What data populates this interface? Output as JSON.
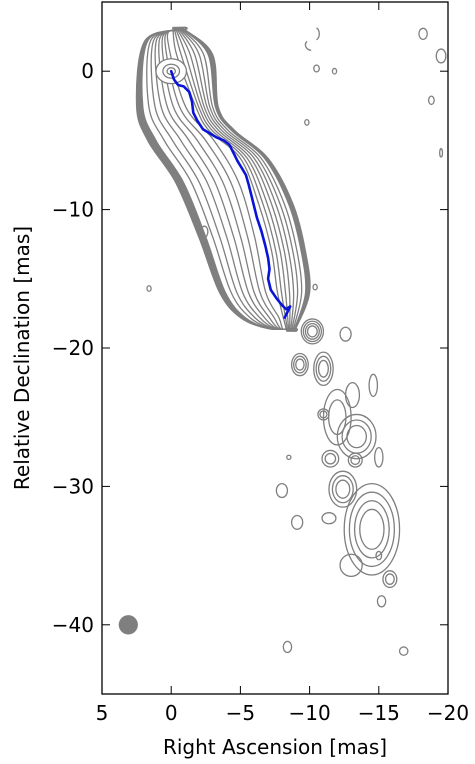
{
  "chart_data": {
    "type": "contour",
    "title": "",
    "xlabel": "Right Ascension [mas]",
    "ylabel": "Relative Declination [mas]",
    "xlim": [
      5,
      -20
    ],
    "ylim": [
      -45,
      5
    ],
    "x_ticks": [
      5,
      0,
      -5,
      -10,
      -15,
      -20
    ],
    "x_tick_labels": [
      "5",
      "0",
      "−5",
      "−10",
      "−15",
      "−20"
    ],
    "y_ticks": [
      0,
      -10,
      -20,
      -30,
      -40
    ],
    "y_tick_labels": [
      "0",
      "−10",
      "−20",
      "−30",
      "−40"
    ],
    "grid": false,
    "colors": {
      "contour": "#7f7f7f",
      "ridge": "#0a14d8",
      "beam": "#7f7f7f"
    },
    "ridge_line": {
      "x": [
        0.0,
        -0.2,
        -0.5,
        -0.9,
        -1.3,
        -1.5,
        -1.6,
        -1.9,
        -2.3,
        -2.8,
        -3.3,
        -3.8,
        -4.2,
        -4.5,
        -4.8,
        -5.1,
        -5.4,
        -5.6,
        -5.8,
        -6.0,
        -6.2,
        -6.5,
        -6.8,
        -7.0,
        -7.1,
        -7.0,
        -7.2,
        -7.6,
        -8.0,
        -8.3,
        -8.6,
        -8.2
      ],
      "y": [
        0.0,
        -0.6,
        -1.0,
        -1.1,
        -1.5,
        -2.2,
        -3.0,
        -3.6,
        -4.2,
        -4.5,
        -4.8,
        -5.0,
        -5.3,
        -5.9,
        -6.5,
        -7.0,
        -7.5,
        -8.2,
        -9.0,
        -9.8,
        -10.6,
        -11.5,
        -12.6,
        -13.5,
        -14.3,
        -15.0,
        -15.8,
        -16.4,
        -16.9,
        -17.2,
        -17.0,
        -17.8
      ]
    },
    "beam": {
      "x": 3.1,
      "y": -40.0,
      "major_mas": 1.4,
      "minor_mas": 1.1
    },
    "main_jet": {
      "levels": 8,
      "outer_left": [
        [
          -1.0,
          3.0
        ],
        [
          1.9,
          2.2
        ],
        [
          2.5,
          -2.5
        ],
        [
          1.7,
          -5.0
        ],
        [
          -0.3,
          -8.0
        ],
        [
          -2.0,
          -12.0
        ],
        [
          -3.5,
          -16.0
        ],
        [
          -5.0,
          -17.8
        ],
        [
          -7.0,
          -18.6
        ],
        [
          -9.0,
          -18.6
        ]
      ],
      "outer_right": [
        [
          -1.0,
          3.0
        ],
        [
          -3.0,
          1.2
        ],
        [
          -3.4,
          -2.6
        ],
        [
          -4.6,
          -4.3
        ],
        [
          -7.0,
          -6.3
        ],
        [
          -8.8,
          -9.6
        ],
        [
          -9.7,
          -13.0
        ],
        [
          -10.0,
          -16.0
        ],
        [
          -9.0,
          -18.6
        ]
      ]
    },
    "components": [
      {
        "x": -10.2,
        "y": -18.8,
        "rx": 0.8,
        "ry": 0.9,
        "n": 4
      },
      {
        "x": -9.3,
        "y": -21.2,
        "rx": 0.6,
        "ry": 0.8,
        "n": 3
      },
      {
        "x": -11.0,
        "y": -21.5,
        "rx": 0.7,
        "ry": 1.2,
        "n": 3
      },
      {
        "x": -12.6,
        "y": -19.0,
        "rx": 0.4,
        "ry": 0.5,
        "n": 1
      },
      {
        "x": -11.0,
        "y": -24.8,
        "rx": 0.4,
        "ry": 0.4,
        "n": 2
      },
      {
        "x": -12.0,
        "y": -25.0,
        "rx": 1.0,
        "ry": 2.0,
        "n": 2
      },
      {
        "x": -13.1,
        "y": -23.4,
        "rx": 0.5,
        "ry": 0.9,
        "n": 1
      },
      {
        "x": -14.6,
        "y": -22.7,
        "rx": 0.3,
        "ry": 0.8,
        "n": 1
      },
      {
        "x": -13.4,
        "y": -26.4,
        "rx": 1.4,
        "ry": 1.6,
        "n": 3
      },
      {
        "x": -11.5,
        "y": -28.0,
        "rx": 0.6,
        "ry": 0.6,
        "n": 2
      },
      {
        "x": -13.3,
        "y": -28.1,
        "rx": 0.5,
        "ry": 0.5,
        "n": 2
      },
      {
        "x": -12.4,
        "y": -30.2,
        "rx": 1.0,
        "ry": 1.3,
        "n": 3
      },
      {
        "x": -15.0,
        "y": -27.9,
        "rx": 0.3,
        "ry": 0.7,
        "n": 1
      },
      {
        "x": -14.5,
        "y": -33.1,
        "rx": 2.0,
        "ry": 3.3,
        "n": 4
      },
      {
        "x": -11.4,
        "y": -32.3,
        "rx": 0.5,
        "ry": 0.4,
        "n": 1
      },
      {
        "x": -9.1,
        "y": -32.6,
        "rx": 0.4,
        "ry": 0.5,
        "n": 1
      },
      {
        "x": -8.0,
        "y": -30.3,
        "rx": 0.4,
        "ry": 0.5,
        "n": 1
      },
      {
        "x": -13.0,
        "y": -35.7,
        "rx": 0.8,
        "ry": 0.8,
        "n": 1
      },
      {
        "x": -15.8,
        "y": -36.7,
        "rx": 0.5,
        "ry": 0.6,
        "n": 2
      },
      {
        "x": -15.2,
        "y": -38.3,
        "rx": 0.3,
        "ry": 0.4,
        "n": 1
      },
      {
        "x": -16.8,
        "y": -41.9,
        "rx": 0.3,
        "ry": 0.3,
        "n": 1
      },
      {
        "x": -8.4,
        "y": -41.6,
        "rx": 0.3,
        "ry": 0.4,
        "n": 1
      },
      {
        "x": -8.5,
        "y": -27.9,
        "rx": 0.15,
        "ry": 0.15,
        "n": 1
      },
      {
        "x": -15.0,
        "y": -35.0,
        "rx": 0.2,
        "ry": 0.3,
        "n": 1
      },
      {
        "x": -10.4,
        "y": -15.6,
        "rx": 0.15,
        "ry": 0.2,
        "n": 1
      },
      {
        "x": 1.6,
        "y": -15.7,
        "rx": 0.15,
        "ry": 0.2,
        "n": 1
      },
      {
        "x": -2.4,
        "y": -11.6,
        "rx": 0.25,
        "ry": 0.4,
        "n": 1
      },
      {
        "x": -9.8,
        "y": -3.7,
        "rx": 0.15,
        "ry": 0.2,
        "n": 1
      },
      {
        "x": -10.5,
        "y": 0.2,
        "rx": 0.2,
        "ry": 0.25,
        "n": 1
      },
      {
        "x": -11.8,
        "y": 0.0,
        "rx": 0.15,
        "ry": 0.2,
        "n": 1
      },
      {
        "x": -18.2,
        "y": 2.7,
        "rx": 0.3,
        "ry": 0.4,
        "n": 1
      },
      {
        "x": -19.5,
        "y": 1.1,
        "rx": 0.35,
        "ry": 0.5,
        "n": 1
      },
      {
        "x": -18.8,
        "y": -2.1,
        "rx": 0.2,
        "ry": 0.3,
        "n": 1
      },
      {
        "x": -19.5,
        "y": -5.9,
        "rx": 0.1,
        "ry": 0.3,
        "n": 1
      }
    ],
    "arcs": [
      {
        "x": -10.3,
        "y": 2.7,
        "rx": 0.4,
        "ry": 0.5,
        "a0": 300,
        "a1": 420
      },
      {
        "x": -10.2,
        "y": 1.9,
        "rx": 0.5,
        "ry": 0.4,
        "a0": 100,
        "a1": 220
      }
    ]
  }
}
